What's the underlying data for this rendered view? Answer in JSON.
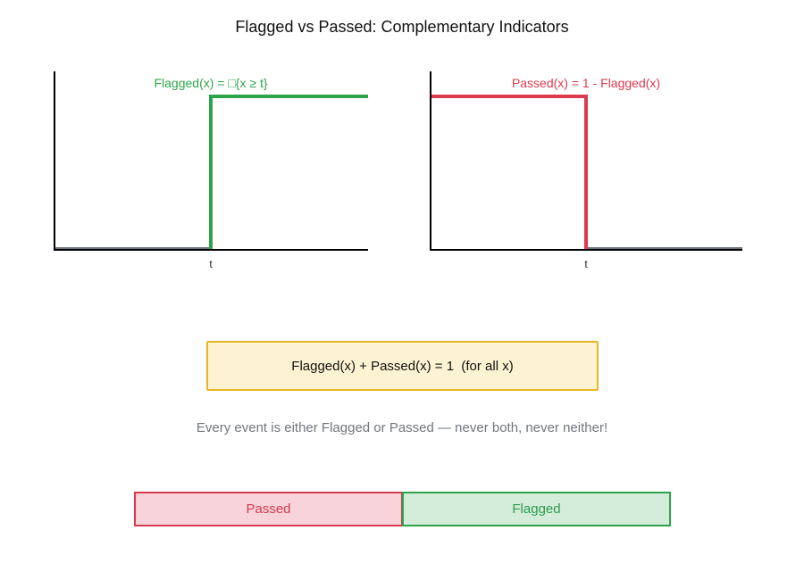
{
  "page": {
    "title": "Flagged vs Passed: Complementary Indicators"
  },
  "colors": {
    "green_line": "#2ea44a",
    "red_line": "#dc3a4f",
    "zero_gray_line": "#6e7580",
    "axis_black": "#000000",
    "formula_box_fill": "#fdf3d2",
    "formula_box_border": "#e9b425",
    "caption_gray": "#71767e",
    "passed_fill": "#f8d4da",
    "passed_border": "#d63a4c",
    "flagged_fill": "#d4ecda",
    "flagged_border": "#2ea44a"
  },
  "chart_data": [
    {
      "type": "line",
      "title": "Flagged(x) = □{x ≥ t}",
      "threshold": "t",
      "step_at": 0.5,
      "x_range": [
        0,
        1
      ],
      "ylim": [
        0,
        1
      ],
      "segments": [
        {
          "x0": 0,
          "x1": 0.5,
          "y": 0
        },
        {
          "x0": 0.5,
          "x1": 1,
          "y": 1
        }
      ],
      "line_color": "#2ea44a",
      "zero_color": "#6e7580",
      "grid": false,
      "legend": "none"
    },
    {
      "type": "line",
      "title": "Passed(x) = 1 - Flagged(x)",
      "threshold": "t",
      "step_at": 0.5,
      "x_range": [
        0,
        1
      ],
      "ylim": [
        0,
        1
      ],
      "segments": [
        {
          "x0": 0,
          "x1": 0.5,
          "y": 1
        },
        {
          "x0": 0.5,
          "x1": 1,
          "y": 0
        }
      ],
      "line_color": "#dc3a4f",
      "zero_color": "#6e7580",
      "grid": false,
      "legend": "none"
    }
  ],
  "formula_box": {
    "text": "Flagged(x) + Passed(x) = 1  (for all x)"
  },
  "caption": "Every event is either Flagged or Passed — never both, never neither!",
  "legend_bar": {
    "segments": [
      {
        "label": "Passed"
      },
      {
        "label": "Flagged"
      }
    ]
  }
}
